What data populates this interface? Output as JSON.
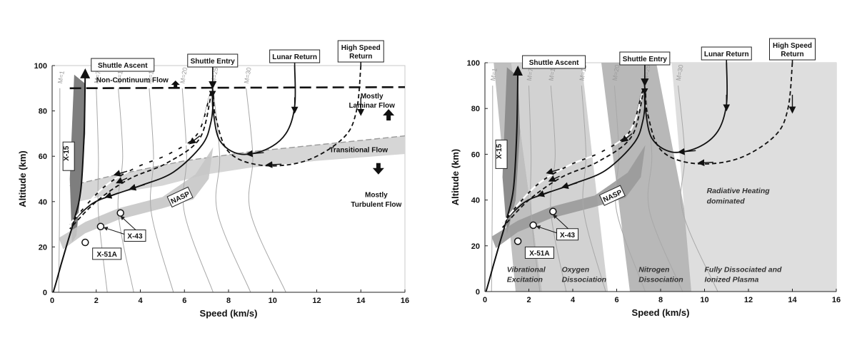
{
  "chart_data": [
    {
      "type": "line",
      "panel": "left",
      "xlabel": "Speed (km/s)",
      "ylabel": "Altitude (km)",
      "xlim": [
        0,
        16
      ],
      "ylim": [
        0,
        100
      ],
      "xticks": [
        "0",
        "2",
        "4",
        "6",
        "8",
        "10",
        "12",
        "14",
        "16"
      ],
      "yticks": [
        "0",
        "20",
        "40",
        "60",
        "80",
        "100"
      ],
      "grid": false,
      "mach_lines": [
        "M=1",
        "M=7",
        "M=10",
        "M=15",
        "M=20",
        "M=25",
        "M=30"
      ],
      "series": [
        {
          "name": "Shuttle Ascent",
          "style": "solid",
          "x": [
            0.05,
            0.2,
            0.4,
            0.7,
            1.0,
            1.3,
            1.45,
            1.5
          ],
          "y": [
            0,
            5,
            12,
            22,
            32,
            45,
            70,
            100
          ]
        },
        {
          "name": "Shuttle Entry",
          "style": "solid",
          "x": [
            7.25,
            7.3,
            7.2,
            6.8,
            5.5,
            4.0,
            2.8,
            1.8,
            0.8
          ],
          "y": [
            92,
            85,
            75,
            65,
            53,
            47,
            43,
            39,
            30
          ]
        },
        {
          "name": "Lunar Return",
          "style": "solid",
          "x": [
            11.0,
            11.0,
            10.6,
            9.7,
            8.5,
            7.6,
            7.3,
            7.2,
            6.6,
            5.3,
            3.8,
            2.3,
            0.8
          ],
          "y": [
            100,
            82,
            70,
            63,
            61,
            67,
            80,
            88,
            70,
            61,
            55,
            46,
            30
          ]
        },
        {
          "name": "High Speed Return",
          "style": "dashed",
          "x": [
            14.0,
            13.8,
            13.2,
            11.5,
            9.5,
            8.0,
            7.4,
            7.25,
            6.7,
            5.2,
            3.5,
            2.0,
            0.8
          ],
          "y": [
            100,
            80,
            68,
            58,
            56,
            62,
            78,
            88,
            68,
            57,
            50,
            40,
            28
          ]
        }
      ],
      "vehicles": [
        {
          "name": "X-15",
          "x": 0.9,
          "y": 55
        },
        {
          "name": "X-51A",
          "x": 1.5,
          "y": 22
        },
        {
          "name": "X-43",
          "x": 2.2,
          "y": 29
        },
        {
          "name": "X-43",
          "x": 3.1,
          "y": 35
        }
      ],
      "corridors": [
        "NASP",
        "Transitional Flow"
      ],
      "annotations": [
        "Non-Continuum Flow",
        "Mostly Laminar Flow",
        "Transitional Flow",
        "Mostly Turbulent Flow"
      ]
    },
    {
      "type": "line",
      "panel": "right",
      "xlabel": "Speed (km/s)",
      "ylabel": "Altitude (km)",
      "xlim": [
        0,
        16
      ],
      "ylim": [
        0,
        100
      ],
      "xticks": [
        "0",
        "2",
        "4",
        "6",
        "8",
        "10",
        "12",
        "14",
        "16"
      ],
      "yticks": [
        "0",
        "20",
        "40",
        "60",
        "80",
        "100"
      ],
      "grid": false,
      "mach_lines": [
        "M=1",
        "M=7",
        "M=10",
        "M=15",
        "M=20",
        "M=25",
        "M=30"
      ],
      "series": [
        "Shuttle Ascent",
        "Shuttle Entry",
        "Lunar Return",
        "High Speed Return"
      ],
      "regions": [
        {
          "label": "Vibrational Excitation"
        },
        {
          "label": "Oxygen Dissociation"
        },
        {
          "label": "Nitrogen Dissociation"
        },
        {
          "label": "Fully Dissociated and Ionized Plasma"
        },
        {
          "label": "Radiative Heating dominated"
        }
      ]
    }
  ],
  "labels": {
    "shuttle_ascent": "Shuttle Ascent",
    "shuttle_entry": "Shuttle Entry",
    "lunar_return": "Lunar Return",
    "high_speed_1": "High Speed",
    "high_speed_2": "Return",
    "x15": "X-15",
    "x51a": "X-51A",
    "x43": "X-43",
    "nasp": "NASP",
    "non_continuum": "Non-Continuum Flow",
    "laminar_1": "Mostly",
    "laminar_2": "Laminar Flow",
    "transitional": "Transitional Flow",
    "turbulent_1": "Mostly",
    "turbulent_2": "Turbulent Flow",
    "vib_1": "Vibrational",
    "vib_2": "Excitation",
    "oxy_1": "Oxygen",
    "oxy_2": "Dissociation",
    "nit_1": "Nitrogen",
    "nit_2": "Dissociation",
    "plasma_1": "Fully Dissociated and",
    "plasma_2": "Ionized Plasma",
    "rad_1": "Radiative Heating",
    "rad_2": "dominated"
  },
  "colors": {
    "trajectory": "#111111",
    "mach_line": "#a8a8a8",
    "corridor": "#d6d6d6",
    "region_dark": "#b4b4b4",
    "region_light": "#dedede"
  }
}
